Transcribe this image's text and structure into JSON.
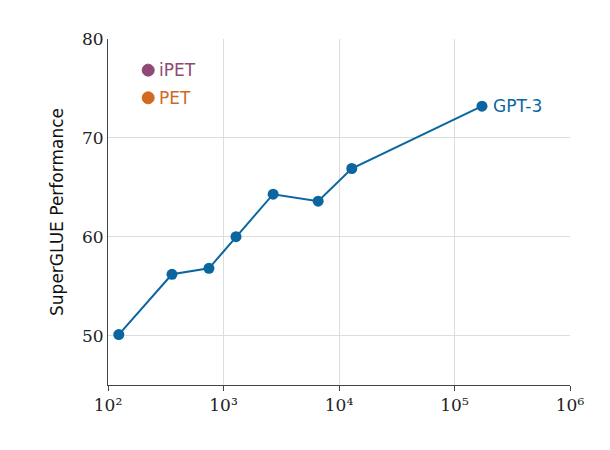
{
  "chart_data": {
    "type": "line",
    "y_label": "SuperGLUE Performance",
    "series": [
      {
        "name": "GPT-3",
        "color": "#0b66a0",
        "marker": "circle",
        "x": [
          124,
          358,
          748,
          1283,
          2690,
          6600,
          12900,
          173000
        ],
        "values": [
          50.1,
          56.2,
          56.8,
          60.0,
          64.3,
          63.6,
          66.9,
          73.2
        ]
      },
      {
        "name": "iPET",
        "color": "#8e4a74",
        "marker": "circle",
        "x": [],
        "values": []
      },
      {
        "name": "PET",
        "color": "#d2691e",
        "marker": "circle",
        "x": [],
        "values": []
      }
    ],
    "log": "x",
    "xlim": [
      100,
      1000000
    ],
    "xticks": [
      {
        "value": 100,
        "label": "10²"
      },
      {
        "value": 1000,
        "label": "10³"
      },
      {
        "value": 10000,
        "label": "10⁴"
      },
      {
        "value": 100000,
        "label": "10⁵"
      },
      {
        "value": 1000000,
        "label": "10⁶"
      }
    ],
    "ylim": [
      45,
      80
    ],
    "yticks": [
      50,
      60,
      70,
      80
    ],
    "grid": true,
    "legend": "upper left"
  }
}
